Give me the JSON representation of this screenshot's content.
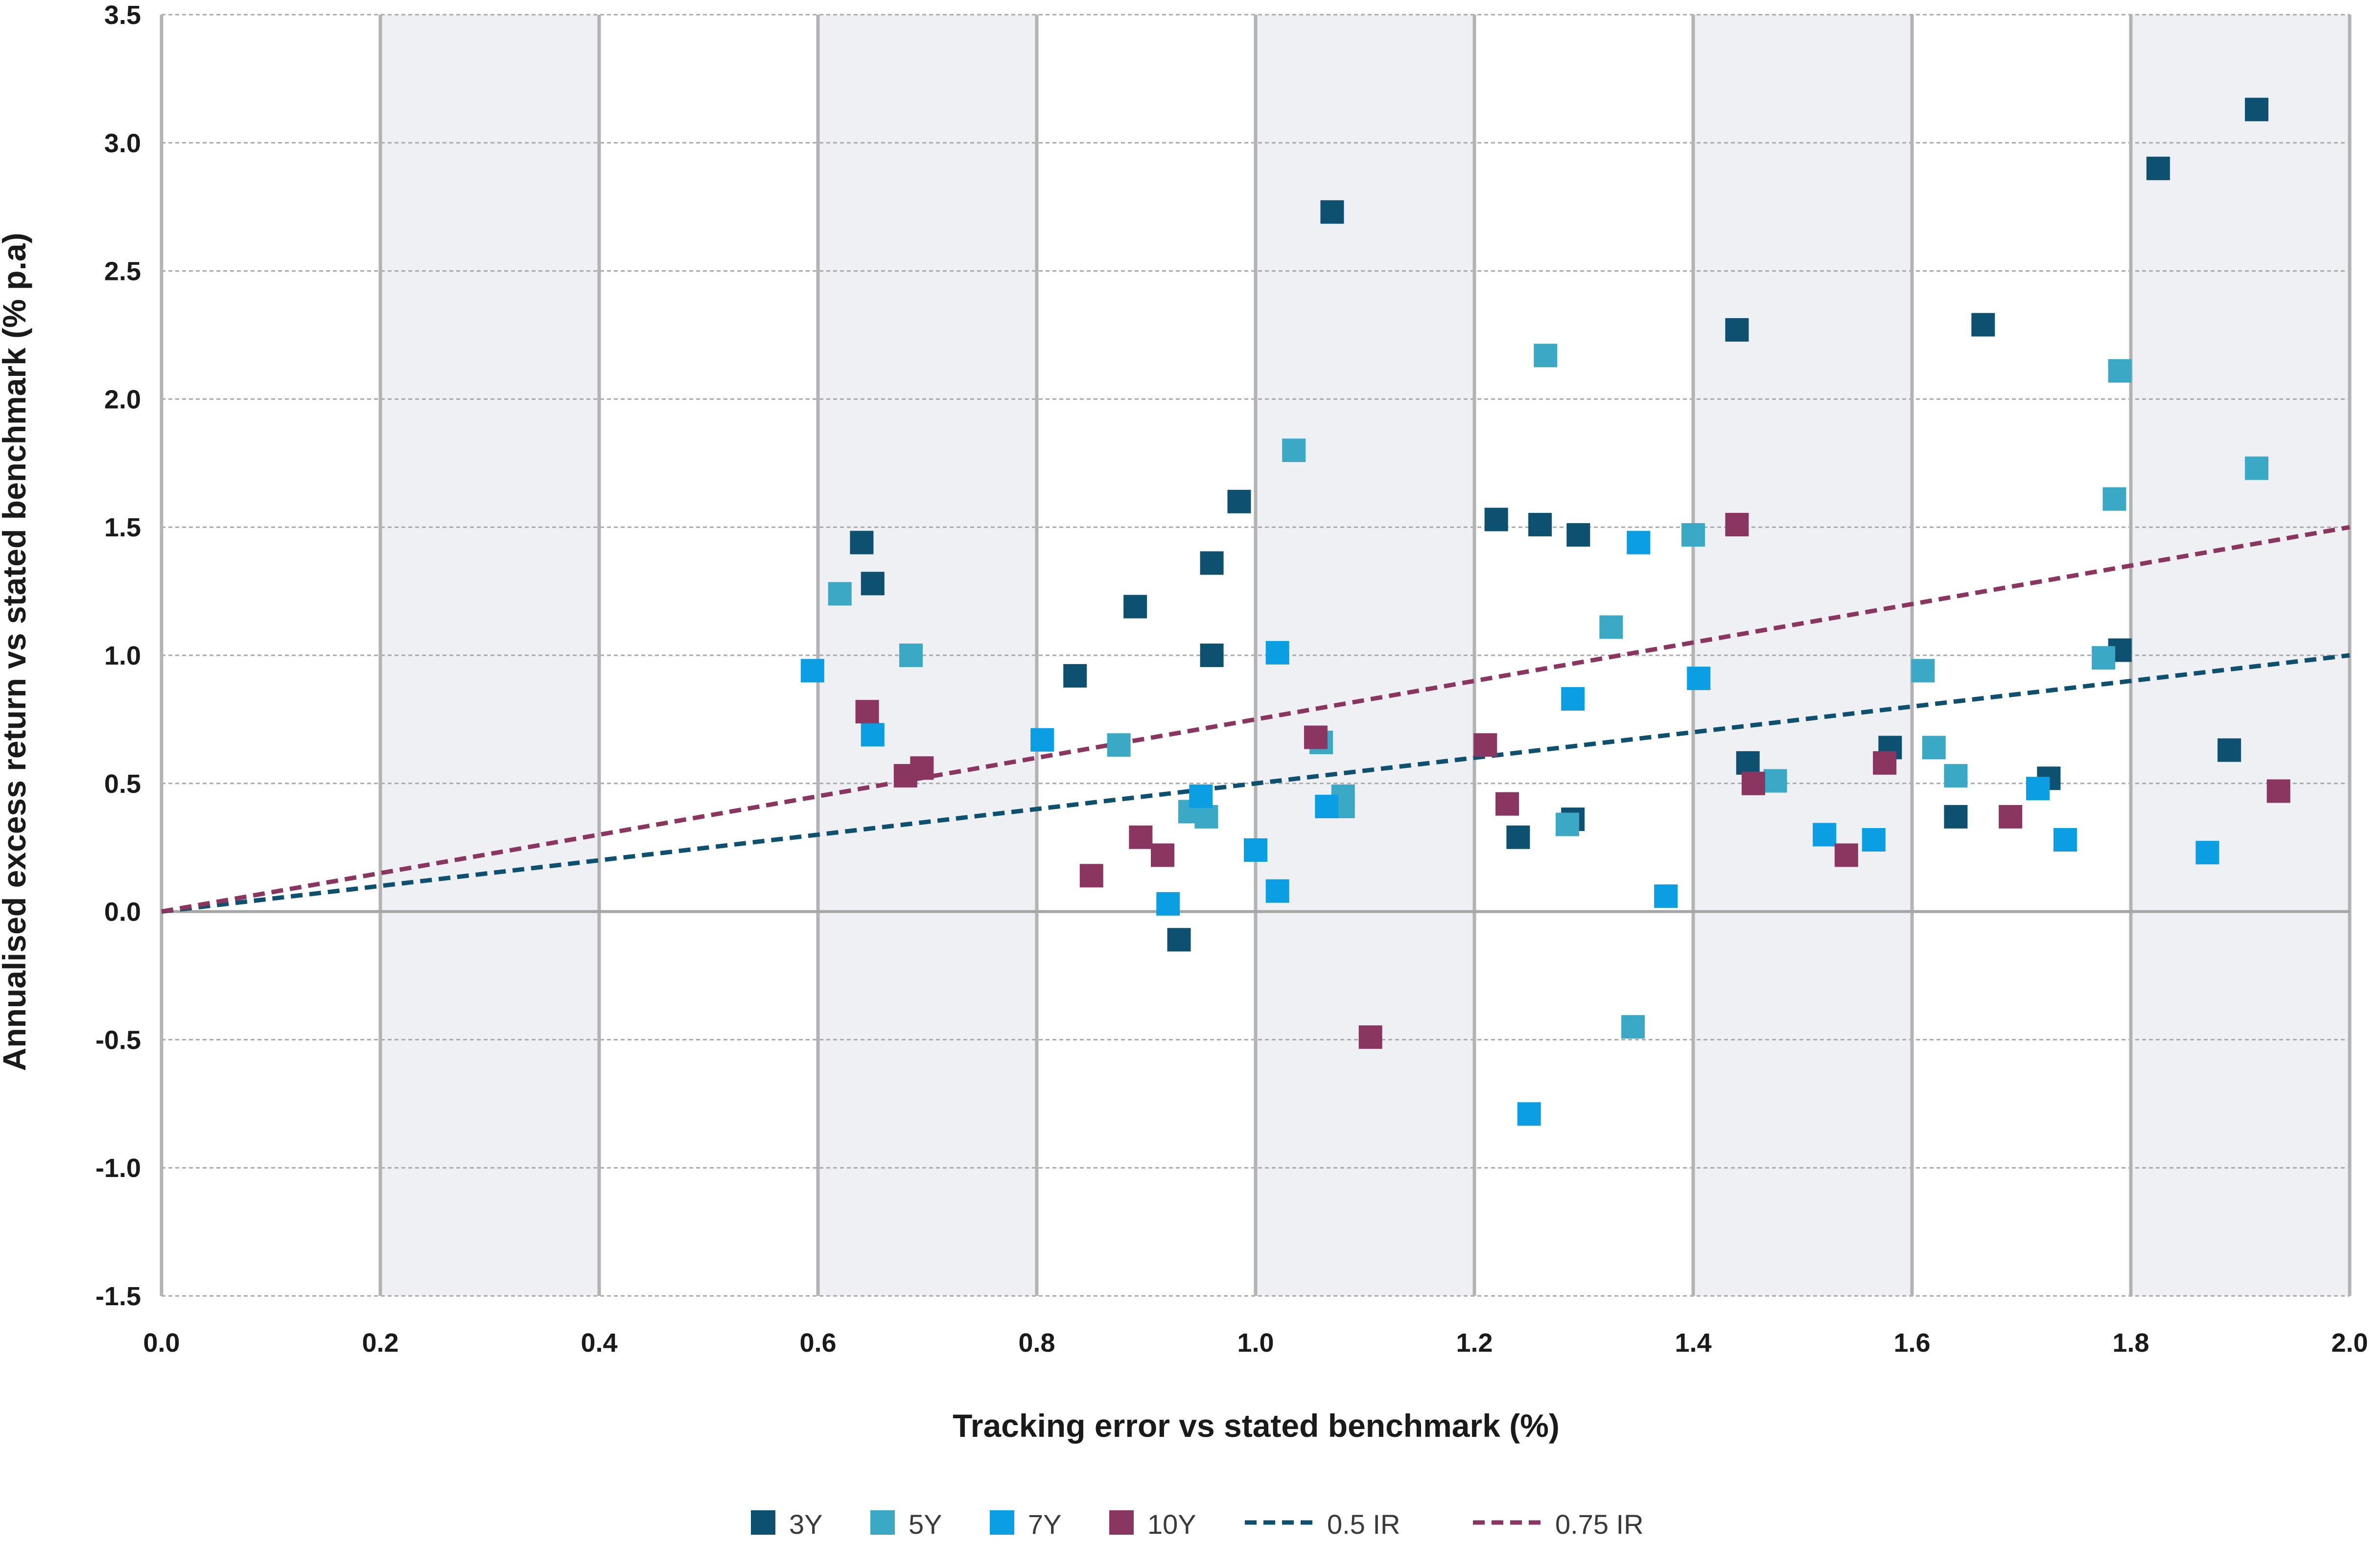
{
  "chart_data": {
    "type": "scatter",
    "title": "",
    "xlabel": "Tracking error vs stated benchmark (%)",
    "ylabel": "Annualised excess return vs stated benchmark (% p.a)",
    "xlim": [
      0,
      2.0
    ],
    "ylim": [
      -1.5,
      3.5
    ],
    "x_ticks": [
      "0.0",
      "0.2",
      "0.4",
      "0.6",
      "0.8",
      "1.0",
      "1.2",
      "1.4",
      "1.6",
      "1.8",
      "2.0"
    ],
    "y_ticks": [
      "3.5",
      "3.0",
      "2.5",
      "2.0",
      "1.5",
      "1.0",
      "0.5",
      "0.0",
      "-0.5",
      "-1.0",
      "-1.5"
    ],
    "shaded_bands": [
      [
        0.2,
        0.4
      ],
      [
        0.6,
        0.8
      ],
      [
        1.0,
        1.2
      ],
      [
        1.4,
        1.6
      ],
      [
        1.8,
        2.0
      ]
    ],
    "grid": true,
    "legend_position": "bottom",
    "series": [
      {
        "name": "3Y",
        "color": "#0e5070",
        "points": [
          [
            0.64,
            1.44
          ],
          [
            0.65,
            1.28
          ],
          [
            0.835,
            0.92
          ],
          [
            0.89,
            1.19
          ],
          [
            0.96,
            1.36
          ],
          [
            0.96,
            1.0
          ],
          [
            0.985,
            1.6
          ],
          [
            0.93,
            -0.11
          ],
          [
            1.07,
            2.73
          ],
          [
            1.22,
            1.53
          ],
          [
            1.26,
            1.51
          ],
          [
            1.295,
            1.47
          ],
          [
            1.24,
            0.29
          ],
          [
            1.29,
            0.36
          ],
          [
            1.44,
            2.27
          ],
          [
            1.45,
            0.58
          ],
          [
            1.58,
            0.64
          ],
          [
            1.64,
            0.37
          ],
          [
            1.665,
            2.29
          ],
          [
            1.725,
            0.52
          ],
          [
            1.79,
            1.02
          ],
          [
            1.825,
            2.9
          ],
          [
            1.89,
            0.63
          ],
          [
            1.915,
            3.13
          ]
        ]
      },
      {
        "name": "5Y",
        "color": "#3ba9c6",
        "points": [
          [
            0.62,
            1.24
          ],
          [
            0.685,
            1.0
          ],
          [
            0.875,
            0.65
          ],
          [
            0.94,
            0.39
          ],
          [
            0.955,
            0.37
          ],
          [
            1.035,
            1.8
          ],
          [
            1.06,
            0.66
          ],
          [
            1.08,
            0.45
          ],
          [
            1.08,
            0.41
          ],
          [
            1.265,
            2.17
          ],
          [
            1.285,
            0.34
          ],
          [
            1.325,
            1.11
          ],
          [
            1.345,
            -0.45
          ],
          [
            1.4,
            1.47
          ],
          [
            1.475,
            0.51
          ],
          [
            1.61,
            0.94
          ],
          [
            1.62,
            0.64
          ],
          [
            1.64,
            0.53
          ],
          [
            1.775,
            0.99
          ],
          [
            1.785,
            1.61
          ],
          [
            1.79,
            2.11
          ],
          [
            1.915,
            1.73
          ]
        ]
      },
      {
        "name": "7Y",
        "color": "#0c9ee2",
        "points": [
          [
            0.595,
            0.94
          ],
          [
            0.65,
            0.69
          ],
          [
            0.805,
            0.67
          ],
          [
            0.92,
            0.03
          ],
          [
            0.95,
            0.45
          ],
          [
            1.0,
            0.24
          ],
          [
            1.02,
            1.01
          ],
          [
            1.02,
            0.08
          ],
          [
            1.065,
            0.41
          ],
          [
            1.25,
            -0.79
          ],
          [
            1.29,
            0.83
          ],
          [
            1.35,
            1.44
          ],
          [
            1.375,
            0.06
          ],
          [
            1.405,
            0.91
          ],
          [
            1.52,
            0.3
          ],
          [
            1.565,
            0.28
          ],
          [
            1.715,
            0.48
          ],
          [
            1.74,
            0.28
          ],
          [
            1.87,
            0.23
          ]
        ]
      },
      {
        "name": "10Y",
        "color": "#8b3660",
        "points": [
          [
            0.645,
            0.78
          ],
          [
            0.68,
            0.53
          ],
          [
            0.695,
            0.56
          ],
          [
            0.85,
            0.14
          ],
          [
            0.895,
            0.29
          ],
          [
            0.915,
            0.22
          ],
          [
            1.055,
            0.68
          ],
          [
            1.105,
            -0.49
          ],
          [
            1.21,
            0.65
          ],
          [
            1.23,
            0.42
          ],
          [
            1.44,
            1.51
          ],
          [
            1.455,
            0.5
          ],
          [
            1.54,
            0.22
          ],
          [
            1.575,
            0.58
          ],
          [
            1.69,
            0.37
          ],
          [
            1.935,
            0.47
          ]
        ]
      }
    ],
    "lines": [
      {
        "name": "0.5 IR",
        "color": "#0e5070",
        "slope": 0.5
      },
      {
        "name": "0.75 IR",
        "color": "#8b3660",
        "slope": 0.75
      }
    ]
  },
  "colors": {
    "band": "#eff0f4",
    "grid_vertical": "#b3b3b3",
    "grid_horizontal": "#a9a9a9",
    "zero_line": "#a6a6a6"
  }
}
